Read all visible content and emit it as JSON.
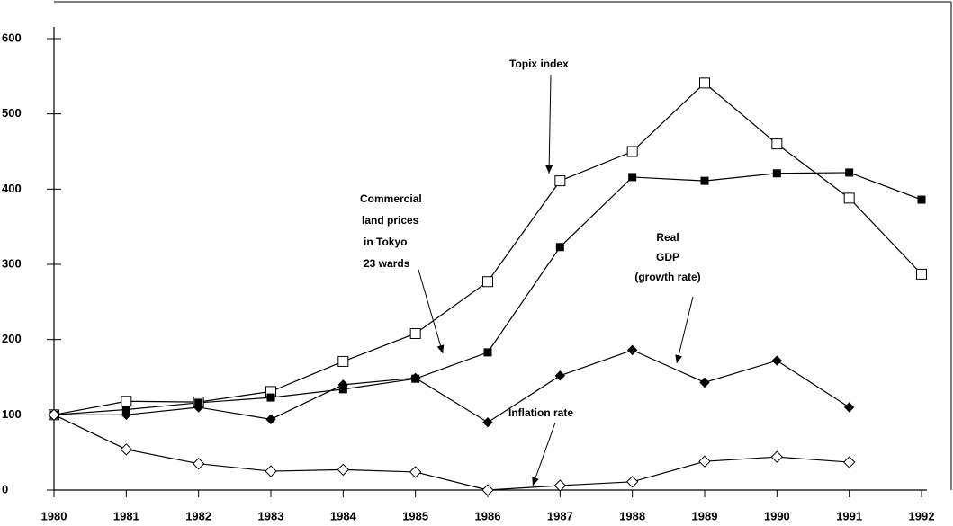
{
  "chart_data": {
    "type": "line",
    "categories": [
      "1980",
      "1981",
      "1982",
      "1983",
      "1984",
      "1985",
      "1986",
      "1987",
      "1988",
      "1989",
      "1990",
      "1991",
      "1992"
    ],
    "ylim": [
      0,
      600
    ],
    "yticks": [
      0,
      100,
      200,
      300,
      400,
      500,
      600
    ],
    "series": [
      {
        "name": "Topix index",
        "color": "#000000",
        "marker": "open-square",
        "values": [
          100,
          118,
          117,
          131,
          171,
          208,
          277,
          411,
          450,
          541,
          460,
          388,
          287
        ]
      },
      {
        "name": "Commercial land prices in Tokyo 23 wards",
        "color": "#000000",
        "marker": "filled-square",
        "values": [
          100,
          107,
          116,
          123,
          134,
          148,
          183,
          323,
          416,
          411,
          421,
          422,
          386
        ]
      },
      {
        "name": "Real GDP (growth rate)",
        "color": "#000000",
        "marker": "filled-diamond",
        "values": [
          100,
          100,
          110,
          94,
          140,
          149,
          90,
          152,
          186,
          143,
          172,
          110,
          null
        ]
      },
      {
        "name": "Inflation rate",
        "color": "#000000",
        "marker": "open-diamond",
        "values": [
          100,
          54,
          35,
          25,
          27,
          24,
          0,
          6,
          11,
          38,
          44,
          37,
          null
        ]
      }
    ],
    "annotations": [
      {
        "lines": [
          "Topix index"
        ]
      },
      {
        "lines": [
          "Commercial",
          "land prices",
          "in Tokyo",
          "23 wards"
        ]
      },
      {
        "lines": [
          "Real",
          "GDP",
          "(growth  rate)"
        ]
      },
      {
        "lines": [
          "Inflation rate"
        ]
      }
    ]
  }
}
